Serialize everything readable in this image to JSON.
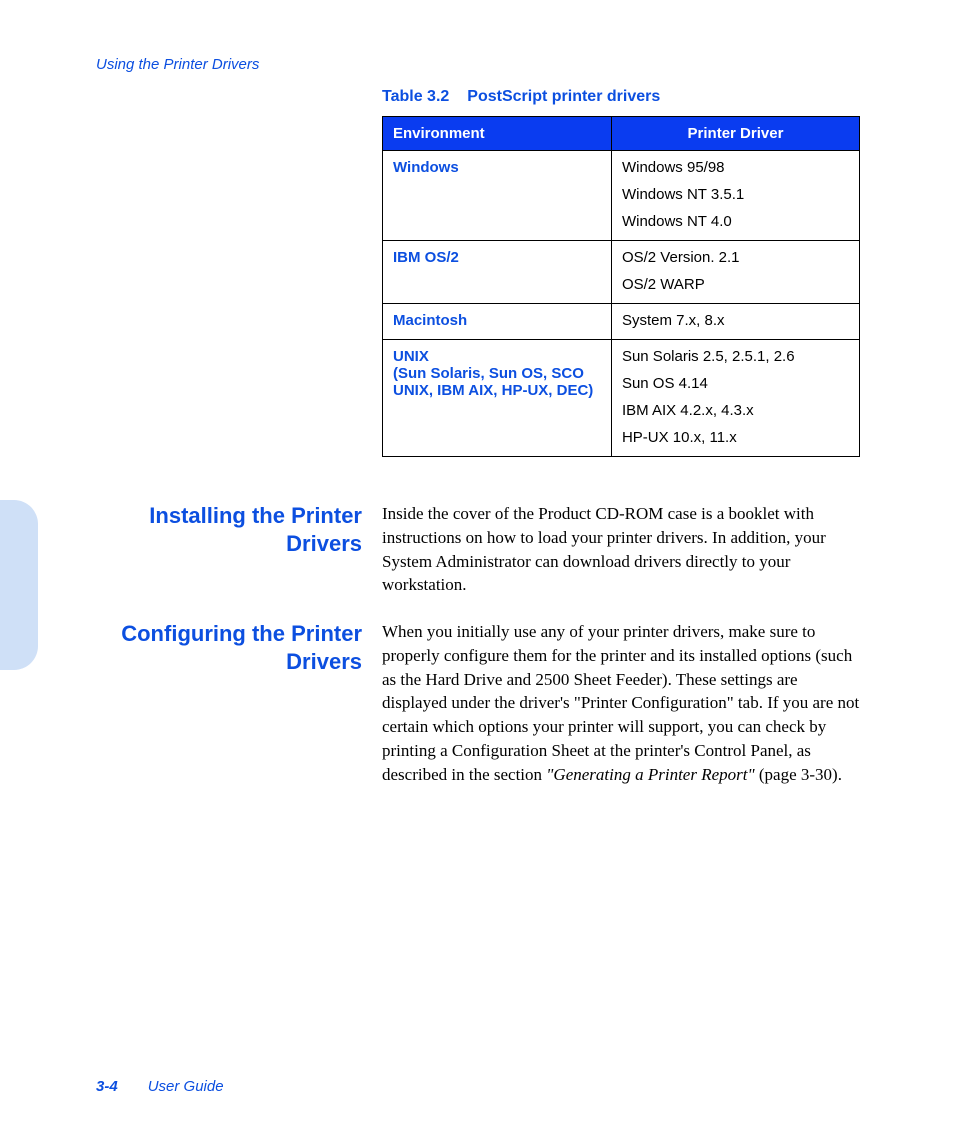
{
  "colors": {
    "brand_blue": "#0c4fe0",
    "header_bg": "#0a3cf0",
    "header_text": "#ffffff",
    "accent_tab": "#cfe0f7",
    "border": "#000000",
    "body_text": "#000000",
    "page_bg": "#ffffff"
  },
  "running_head": "Using the Printer Drivers",
  "table": {
    "caption_number": "Table 3.2",
    "caption_title": "PostScript printer drivers",
    "columns": [
      "Environment",
      "Printer Driver"
    ],
    "rows": [
      {
        "env": "Windows",
        "drivers": [
          "Windows 95/98",
          "Windows NT 3.5.1",
          "Windows NT 4.0"
        ]
      },
      {
        "env": "IBM OS/2",
        "drivers": [
          "OS/2 Version. 2.1",
          "OS/2 WARP"
        ]
      },
      {
        "env": "Macintosh",
        "drivers": [
          "System 7.x, 8.x"
        ]
      },
      {
        "env": "UNIX\n(Sun Solaris, Sun OS, SCO UNIX, IBM AIX, HP-UX, DEC)",
        "drivers": [
          "Sun Solaris 2.5, 2.5.1, 2.6",
          "Sun OS 4.14",
          "IBM AIX 4.2.x, 4.3.x",
          "HP-UX 10.x, 11.x"
        ]
      }
    ]
  },
  "sections": {
    "installing": {
      "heading": "Installing the Printer Drivers",
      "body": "Inside the cover of the Product CD-ROM case is a booklet with instructions on how to load your printer drivers. In addition, your System Administrator can download drivers directly to your workstation."
    },
    "configuring": {
      "heading": "Configuring the Printer Drivers",
      "body_pre": "When you initially use any of your printer drivers, make sure to properly configure them for the printer and its installed options (such as the Hard Drive and 2500 Sheet Feeder). These settings are displayed under the driver's \"Printer Configuration\" tab. If you are not certain which options your printer will support, you can check by printing a Configuration Sheet at the printer's Control Panel, as described in the section ",
      "body_ital": "\"Generating a Printer Report\"",
      "body_post": " (page 3-30)."
    }
  },
  "footer": {
    "page_number": "3-4",
    "doc_title": "User Guide"
  }
}
